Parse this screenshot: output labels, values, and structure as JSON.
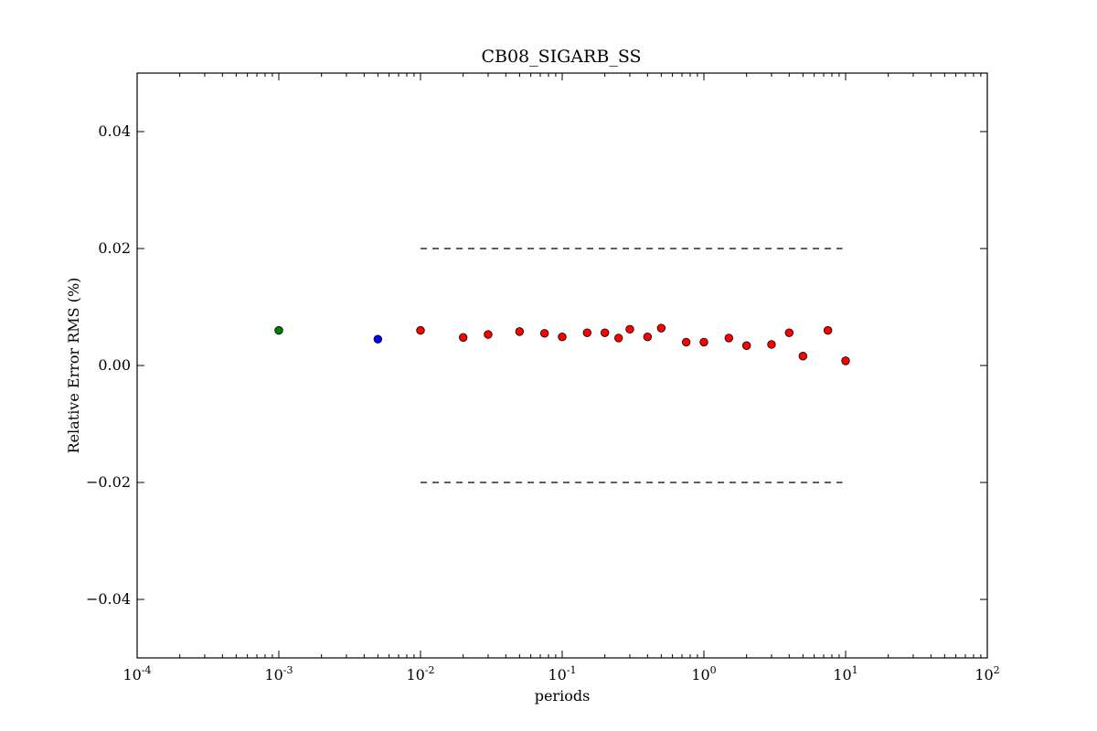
{
  "chart_data": {
    "type": "scatter",
    "title": "CB08_SIGARB_SS",
    "xlabel": "periods",
    "ylabel": "Relative Error RMS (%)",
    "xscale": "log",
    "xlim": [
      0.0001,
      100
    ],
    "ylim": [
      -0.05,
      0.05
    ],
    "grid": false,
    "x_ticks": [
      {
        "value": 0.0001,
        "base": "10",
        "exp": "-4"
      },
      {
        "value": 0.001,
        "base": "10",
        "exp": "-3"
      },
      {
        "value": 0.01,
        "base": "10",
        "exp": "-2"
      },
      {
        "value": 0.1,
        "base": "10",
        "exp": "-1"
      },
      {
        "value": 1,
        "base": "10",
        "exp": "0"
      },
      {
        "value": 10,
        "base": "10",
        "exp": "1"
      },
      {
        "value": 100,
        "base": "10",
        "exp": "2"
      }
    ],
    "y_ticks": [
      {
        "value": 0.04,
        "label": "0.04"
      },
      {
        "value": 0.02,
        "label": "0.02"
      },
      {
        "value": 0.0,
        "label": "0.00"
      },
      {
        "value": -0.02,
        "label": "−0.02"
      },
      {
        "value": -0.04,
        "label": "−0.04"
      }
    ],
    "series": [
      {
        "color": "#008000",
        "points": [
          [
            0.001,
            0.006
          ]
        ]
      },
      {
        "color": "#0000ff",
        "points": [
          [
            0.005,
            0.0045
          ]
        ]
      },
      {
        "color": "#ff0000",
        "points": [
          [
            0.01,
            0.006
          ],
          [
            0.02,
            0.0048
          ],
          [
            0.03,
            0.0053
          ],
          [
            0.05,
            0.0058
          ],
          [
            0.075,
            0.0055
          ],
          [
            0.1,
            0.0049
          ],
          [
            0.15,
            0.0056
          ],
          [
            0.2,
            0.0056
          ],
          [
            0.25,
            0.0047
          ],
          [
            0.3,
            0.0062
          ],
          [
            0.4,
            0.0049
          ],
          [
            0.5,
            0.0064
          ],
          [
            0.75,
            0.004
          ],
          [
            1.0,
            0.004
          ],
          [
            1.5,
            0.0047
          ],
          [
            2.0,
            0.0034
          ],
          [
            3.0,
            0.0036
          ],
          [
            4.0,
            0.0056
          ],
          [
            5.0,
            0.0016
          ],
          [
            7.5,
            0.006
          ],
          [
            10.0,
            0.0008
          ]
        ]
      }
    ],
    "reference_lines": [
      {
        "x": [
          0.01,
          9.5
        ],
        "y": 0.02,
        "style": "dashed",
        "color": "#000000"
      },
      {
        "x": [
          0.01,
          9.5
        ],
        "y": -0.02,
        "style": "dashed",
        "color": "#000000"
      }
    ]
  }
}
